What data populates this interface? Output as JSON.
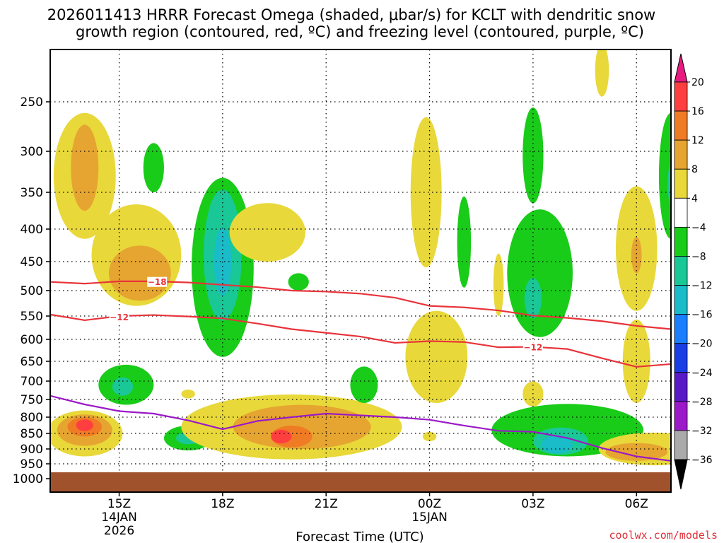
{
  "chart_data": {
    "type": "heatmap",
    "title_lines": [
      "2026011413 HRRR Forecast Omega (shaded, μbar/s) for KCLT with dendritic snow",
      "growth region (contoured, red, ºC) and freezing level (contoured, purple, ºC)"
    ],
    "xlabel": "Forecast Time (UTC)",
    "credit": "coolwx.com/models",
    "x_range_hours": [
      13.0,
      31.0
    ],
    "y_range_hpa": [
      1000,
      200
    ],
    "y_ticks": [
      250,
      300,
      350,
      400,
      450,
      500,
      550,
      600,
      650,
      700,
      750,
      800,
      850,
      900,
      950,
      1000
    ],
    "x_ticks": [
      {
        "hour": 15,
        "lines": [
          "15Z",
          "14JAN",
          "2026"
        ]
      },
      {
        "hour": 18,
        "lines": [
          "18Z"
        ]
      },
      {
        "hour": 21,
        "lines": [
          "21Z"
        ]
      },
      {
        "hour": 24,
        "lines": [
          "00Z",
          "15JAN"
        ]
      },
      {
        "hour": 27,
        "lines": [
          "03Z"
        ]
      },
      {
        "hour": 30,
        "lines": [
          "06Z"
        ]
      }
    ],
    "colorbar": {
      "levels": [
        "20",
        "16",
        "12",
        "8",
        "4",
        "−4",
        "−8",
        "−12",
        "−16",
        "−20",
        "−24",
        "−28",
        "−32",
        "−36"
      ],
      "bands": [
        {
          "range": "16 to 20",
          "color": "#ff3f3f"
        },
        {
          "range": "12 to 16",
          "color": "#f07b25"
        },
        {
          "range": "8 to 12",
          "color": "#e6a530"
        },
        {
          "range": "4 to 8",
          "color": "#e8d83a"
        },
        {
          "range": "-4 to 4",
          "color": "#ffffff"
        },
        {
          "range": "-8 to -4",
          "color": "#19cc19"
        },
        {
          "range": "-12 to -8",
          "color": "#19c896"
        },
        {
          "range": "-16 to -12",
          "color": "#19bcc8"
        },
        {
          "range": "-20 to -16",
          "color": "#197fff"
        },
        {
          "range": "-24 to -20",
          "color": "#1a3ee6"
        },
        {
          "range": "-28 to -24",
          "color": "#5a19c8"
        },
        {
          "range": "-32 to -28",
          "color": "#9b19c8"
        },
        {
          "range": "-36 to -32",
          "color": "#aaaaaa"
        }
      ],
      "top_arrow_color": "#e8197f",
      "bottom_arrow_color": "#000000"
    },
    "ground_color": "#a0522d",
    "omega_regions": [
      {
        "hour": 14.0,
        "p": 330,
        "dh": 0.9,
        "dp": 85,
        "v": 6
      },
      {
        "hour": 14.0,
        "p": 320,
        "dh": 0.4,
        "dp": 55,
        "v": 10
      },
      {
        "hour": 15.5,
        "p": 440,
        "dh": 1.3,
        "dp": 90,
        "v": 5
      },
      {
        "hour": 15.6,
        "p": 470,
        "dh": 0.9,
        "dp": 50,
        "v": 9
      },
      {
        "hour": 16.0,
        "p": 320,
        "dh": 0.3,
        "dp": 30,
        "v": -6
      },
      {
        "hour": 18.0,
        "p": 460,
        "dh": 0.9,
        "dp": 180,
        "v": -6
      },
      {
        "hour": 18.0,
        "p": 440,
        "dh": 0.55,
        "dp": 120,
        "v": -10
      },
      {
        "hour": 18.0,
        "p": 450,
        "dh": 0.25,
        "dp": 60,
        "v": -13
      },
      {
        "hour": 19.3,
        "p": 405,
        "dh": 1.1,
        "dp": 45,
        "v": 5
      },
      {
        "hour": 20.2,
        "p": 485,
        "dh": 0.3,
        "dp": 15,
        "v": -6
      },
      {
        "hour": 14.0,
        "p": 850,
        "dh": 1.1,
        "dp": 75,
        "v": 6
      },
      {
        "hour": 14.0,
        "p": 840,
        "dh": 0.8,
        "dp": 50,
        "v": 10
      },
      {
        "hour": 14.0,
        "p": 830,
        "dh": 0.5,
        "dp": 30,
        "v": 14
      },
      {
        "hour": 14.0,
        "p": 825,
        "dh": 0.25,
        "dp": 18,
        "v": 18
      },
      {
        "hour": 15.2,
        "p": 710,
        "dh": 0.8,
        "dp": 55,
        "v": -6
      },
      {
        "hour": 15.1,
        "p": 715,
        "dh": 0.3,
        "dp": 25,
        "v": -10
      },
      {
        "hour": 17.0,
        "p": 865,
        "dh": 0.7,
        "dp": 40,
        "v": -6
      },
      {
        "hour": 17.0,
        "p": 865,
        "dh": 0.35,
        "dp": 20,
        "v": -11
      },
      {
        "hour": 17.0,
        "p": 735,
        "dh": 0.2,
        "dp": 12,
        "v": 5
      },
      {
        "hour": 20.0,
        "p": 830,
        "dh": 3.2,
        "dp": 105,
        "v": 6
      },
      {
        "hour": 20.3,
        "p": 830,
        "dh": 2.0,
        "dp": 70,
        "v": 10
      },
      {
        "hour": 20.0,
        "p": 860,
        "dh": 0.6,
        "dp": 35,
        "v": 14
      },
      {
        "hour": 19.7,
        "p": 860,
        "dh": 0.3,
        "dp": 22,
        "v": 18
      },
      {
        "hour": 22.1,
        "p": 710,
        "dh": 0.4,
        "dp": 50,
        "v": -6
      },
      {
        "hour": 23.9,
        "p": 350,
        "dh": 0.45,
        "dp": 110,
        "v": 5
      },
      {
        "hour": 25.0,
        "p": 420,
        "dh": 0.2,
        "dp": 75,
        "v": -6
      },
      {
        "hour": 24.2,
        "p": 640,
        "dh": 0.9,
        "dp": 120,
        "v": 5
      },
      {
        "hour": 24.0,
        "p": 860,
        "dh": 0.2,
        "dp": 15,
        "v": 5
      },
      {
        "hour": 26.0,
        "p": 490,
        "dh": 0.15,
        "dp": 60,
        "v": 5
      },
      {
        "hour": 27.0,
        "p": 305,
        "dh": 0.3,
        "dp": 60,
        "v": -6
      },
      {
        "hour": 27.2,
        "p": 470,
        "dh": 0.95,
        "dp": 125,
        "v": -6
      },
      {
        "hour": 27.0,
        "p": 515,
        "dh": 0.25,
        "dp": 40,
        "v": -10
      },
      {
        "hour": 27.0,
        "p": 735,
        "dh": 0.3,
        "dp": 35,
        "v": 5
      },
      {
        "hour": 28.0,
        "p": 840,
        "dh": 2.2,
        "dp": 85,
        "v": -6
      },
      {
        "hour": 27.8,
        "p": 875,
        "dh": 0.8,
        "dp": 45,
        "v": -10
      },
      {
        "hour": 27.7,
        "p": 885,
        "dh": 0.45,
        "dp": 30,
        "v": -13
      },
      {
        "hour": 29.0,
        "p": 220,
        "dh": 0.2,
        "dp": 25,
        "v": 5
      },
      {
        "hour": 30.0,
        "p": 430,
        "dh": 0.6,
        "dp": 110,
        "v": 5
      },
      {
        "hour": 30.0,
        "p": 440,
        "dh": 0.15,
        "dp": 30,
        "v": 9
      },
      {
        "hour": 30.0,
        "p": 650,
        "dh": 0.4,
        "dp": 110,
        "v": 5
      },
      {
        "hour": 30.5,
        "p": 900,
        "dh": 1.6,
        "dp": 55,
        "v": 6
      },
      {
        "hour": 30.0,
        "p": 910,
        "dh": 0.9,
        "dp": 30,
        "v": 10
      },
      {
        "hour": 31.0,
        "p": 330,
        "dh": 0.35,
        "dp": 85,
        "v": -6
      },
      {
        "hour": 31.0,
        "p": 340,
        "dh": 0.1,
        "dp": 25,
        "v": -10
      }
    ],
    "contours": [
      {
        "name": "-18",
        "color": "#e8333a",
        "label": "−18",
        "label_index": 2,
        "points": [
          [
            13.0,
            485
          ],
          [
            14.0,
            488
          ],
          [
            15.0,
            484
          ],
          [
            16.0,
            484
          ],
          [
            17.0,
            486
          ],
          [
            18.0,
            490
          ],
          [
            19.0,
            494
          ],
          [
            20.0,
            500
          ],
          [
            21.0,
            502
          ],
          [
            22.0,
            506
          ],
          [
            23.0,
            514
          ],
          [
            24.0,
            530
          ],
          [
            25.0,
            533
          ],
          [
            26.0,
            539
          ],
          [
            27.0,
            549
          ],
          [
            28.0,
            554
          ],
          [
            29.0,
            561
          ],
          [
            30.0,
            571
          ],
          [
            31.0,
            578
          ]
        ]
      },
      {
        "name": "-12",
        "color": "#e8333a",
        "label": "−12",
        "label_index": 2,
        "points": [
          [
            13.0,
            547
          ],
          [
            14.0,
            559
          ],
          [
            15.0,
            550
          ],
          [
            16.0,
            548
          ],
          [
            17.0,
            551
          ],
          [
            18.0,
            555
          ],
          [
            19.0,
            566
          ],
          [
            20.0,
            578
          ],
          [
            21.0,
            586
          ],
          [
            22.0,
            594
          ],
          [
            23.0,
            608
          ],
          [
            24.0,
            604
          ],
          [
            25.0,
            606
          ],
          [
            26.0,
            618
          ],
          [
            27.0,
            617
          ],
          [
            28.0,
            622
          ],
          [
            29.0,
            643
          ],
          [
            30.0,
            664
          ],
          [
            31.0,
            657
          ]
        ]
      },
      {
        "name": "0",
        "color": "#9b19c8",
        "label": "",
        "label_index": -1,
        "points": [
          [
            13.0,
            740
          ],
          [
            14.0,
            764
          ],
          [
            15.0,
            783
          ],
          [
            16.0,
            790
          ],
          [
            17.0,
            810
          ],
          [
            18.0,
            837
          ],
          [
            19.0,
            812
          ],
          [
            20.0,
            800
          ],
          [
            21.0,
            790
          ],
          [
            22.0,
            795
          ],
          [
            23.0,
            800
          ],
          [
            24.0,
            808
          ],
          [
            25.0,
            826
          ],
          [
            26.0,
            842
          ],
          [
            27.0,
            845
          ],
          [
            28.0,
            865
          ],
          [
            29.0,
            897
          ],
          [
            30.0,
            925
          ],
          [
            31.0,
            940
          ]
        ]
      }
    ]
  }
}
